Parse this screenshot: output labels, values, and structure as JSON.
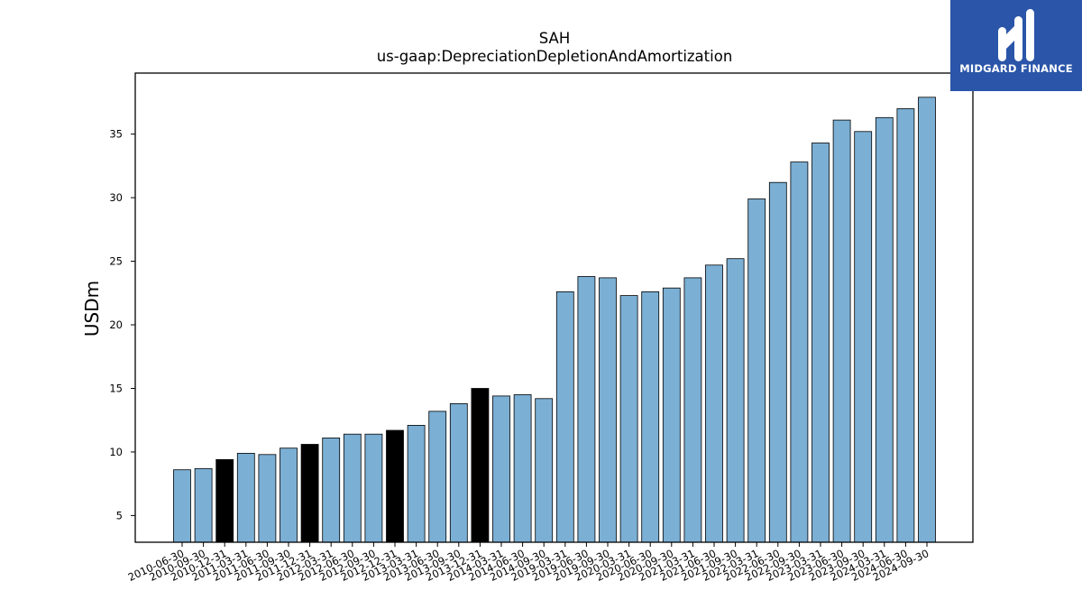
{
  "chart_data": {
    "type": "bar",
    "title": "SAH",
    "subtitle": "us-gaap:DepreciationDepletionAndAmortization",
    "xlabel": "",
    "ylabel": "USDm",
    "ylim": [
      2.9,
      39.8
    ],
    "yticks": [
      5,
      10,
      15,
      20,
      25,
      30,
      35
    ],
    "grid": false,
    "categories": [
      "2010-06-30",
      "2010-09-30",
      "2010-12-31",
      "2011-03-31",
      "2011-06-30",
      "2011-09-30",
      "2011-12-31",
      "2012-03-31",
      "2012-06-30",
      "2012-09-30",
      "2012-12-31",
      "2013-03-31",
      "2013-06-30",
      "2013-09-30",
      "2013-12-31",
      "2014-03-31",
      "2014-06-30",
      "2014-09-30",
      "2019-03-31",
      "2019-06-30",
      "2019-09-30",
      "2020-03-31",
      "2020-06-30",
      "2020-09-30",
      "2021-03-31",
      "2021-06-30",
      "2021-09-30",
      "2022-03-31",
      "2022-06-30",
      "2022-09-30",
      "2023-03-31",
      "2023-06-30",
      "2023-09-30",
      "2024-03-31",
      "2024-06-30",
      "2024-09-30"
    ],
    "values": [
      8.6,
      8.7,
      9.4,
      9.9,
      9.8,
      10.3,
      10.6,
      11.1,
      11.4,
      11.4,
      11.7,
      12.1,
      13.2,
      13.8,
      15.0,
      14.4,
      14.5,
      14.2,
      22.6,
      23.8,
      23.7,
      22.3,
      22.6,
      22.9,
      23.7,
      24.7,
      25.2,
      29.9,
      31.2,
      32.8,
      34.3,
      36.1,
      35.2,
      36.3,
      37.0,
      37.9
    ],
    "highlighted": [
      false,
      false,
      true,
      false,
      false,
      false,
      true,
      false,
      false,
      false,
      true,
      false,
      false,
      false,
      true,
      false,
      false,
      false,
      false,
      false,
      false,
      false,
      false,
      false,
      false,
      false,
      false,
      false,
      false,
      false,
      false,
      false,
      false,
      false,
      false,
      false
    ],
    "colors": {
      "bar": "#7bafd4",
      "highlight": "#000000",
      "edge": "#000000",
      "axis": "#000000"
    }
  },
  "logo": {
    "text": "MIDGARD FINANCE",
    "icon": "midgard-logo-icon",
    "background": "#2a55a8"
  }
}
